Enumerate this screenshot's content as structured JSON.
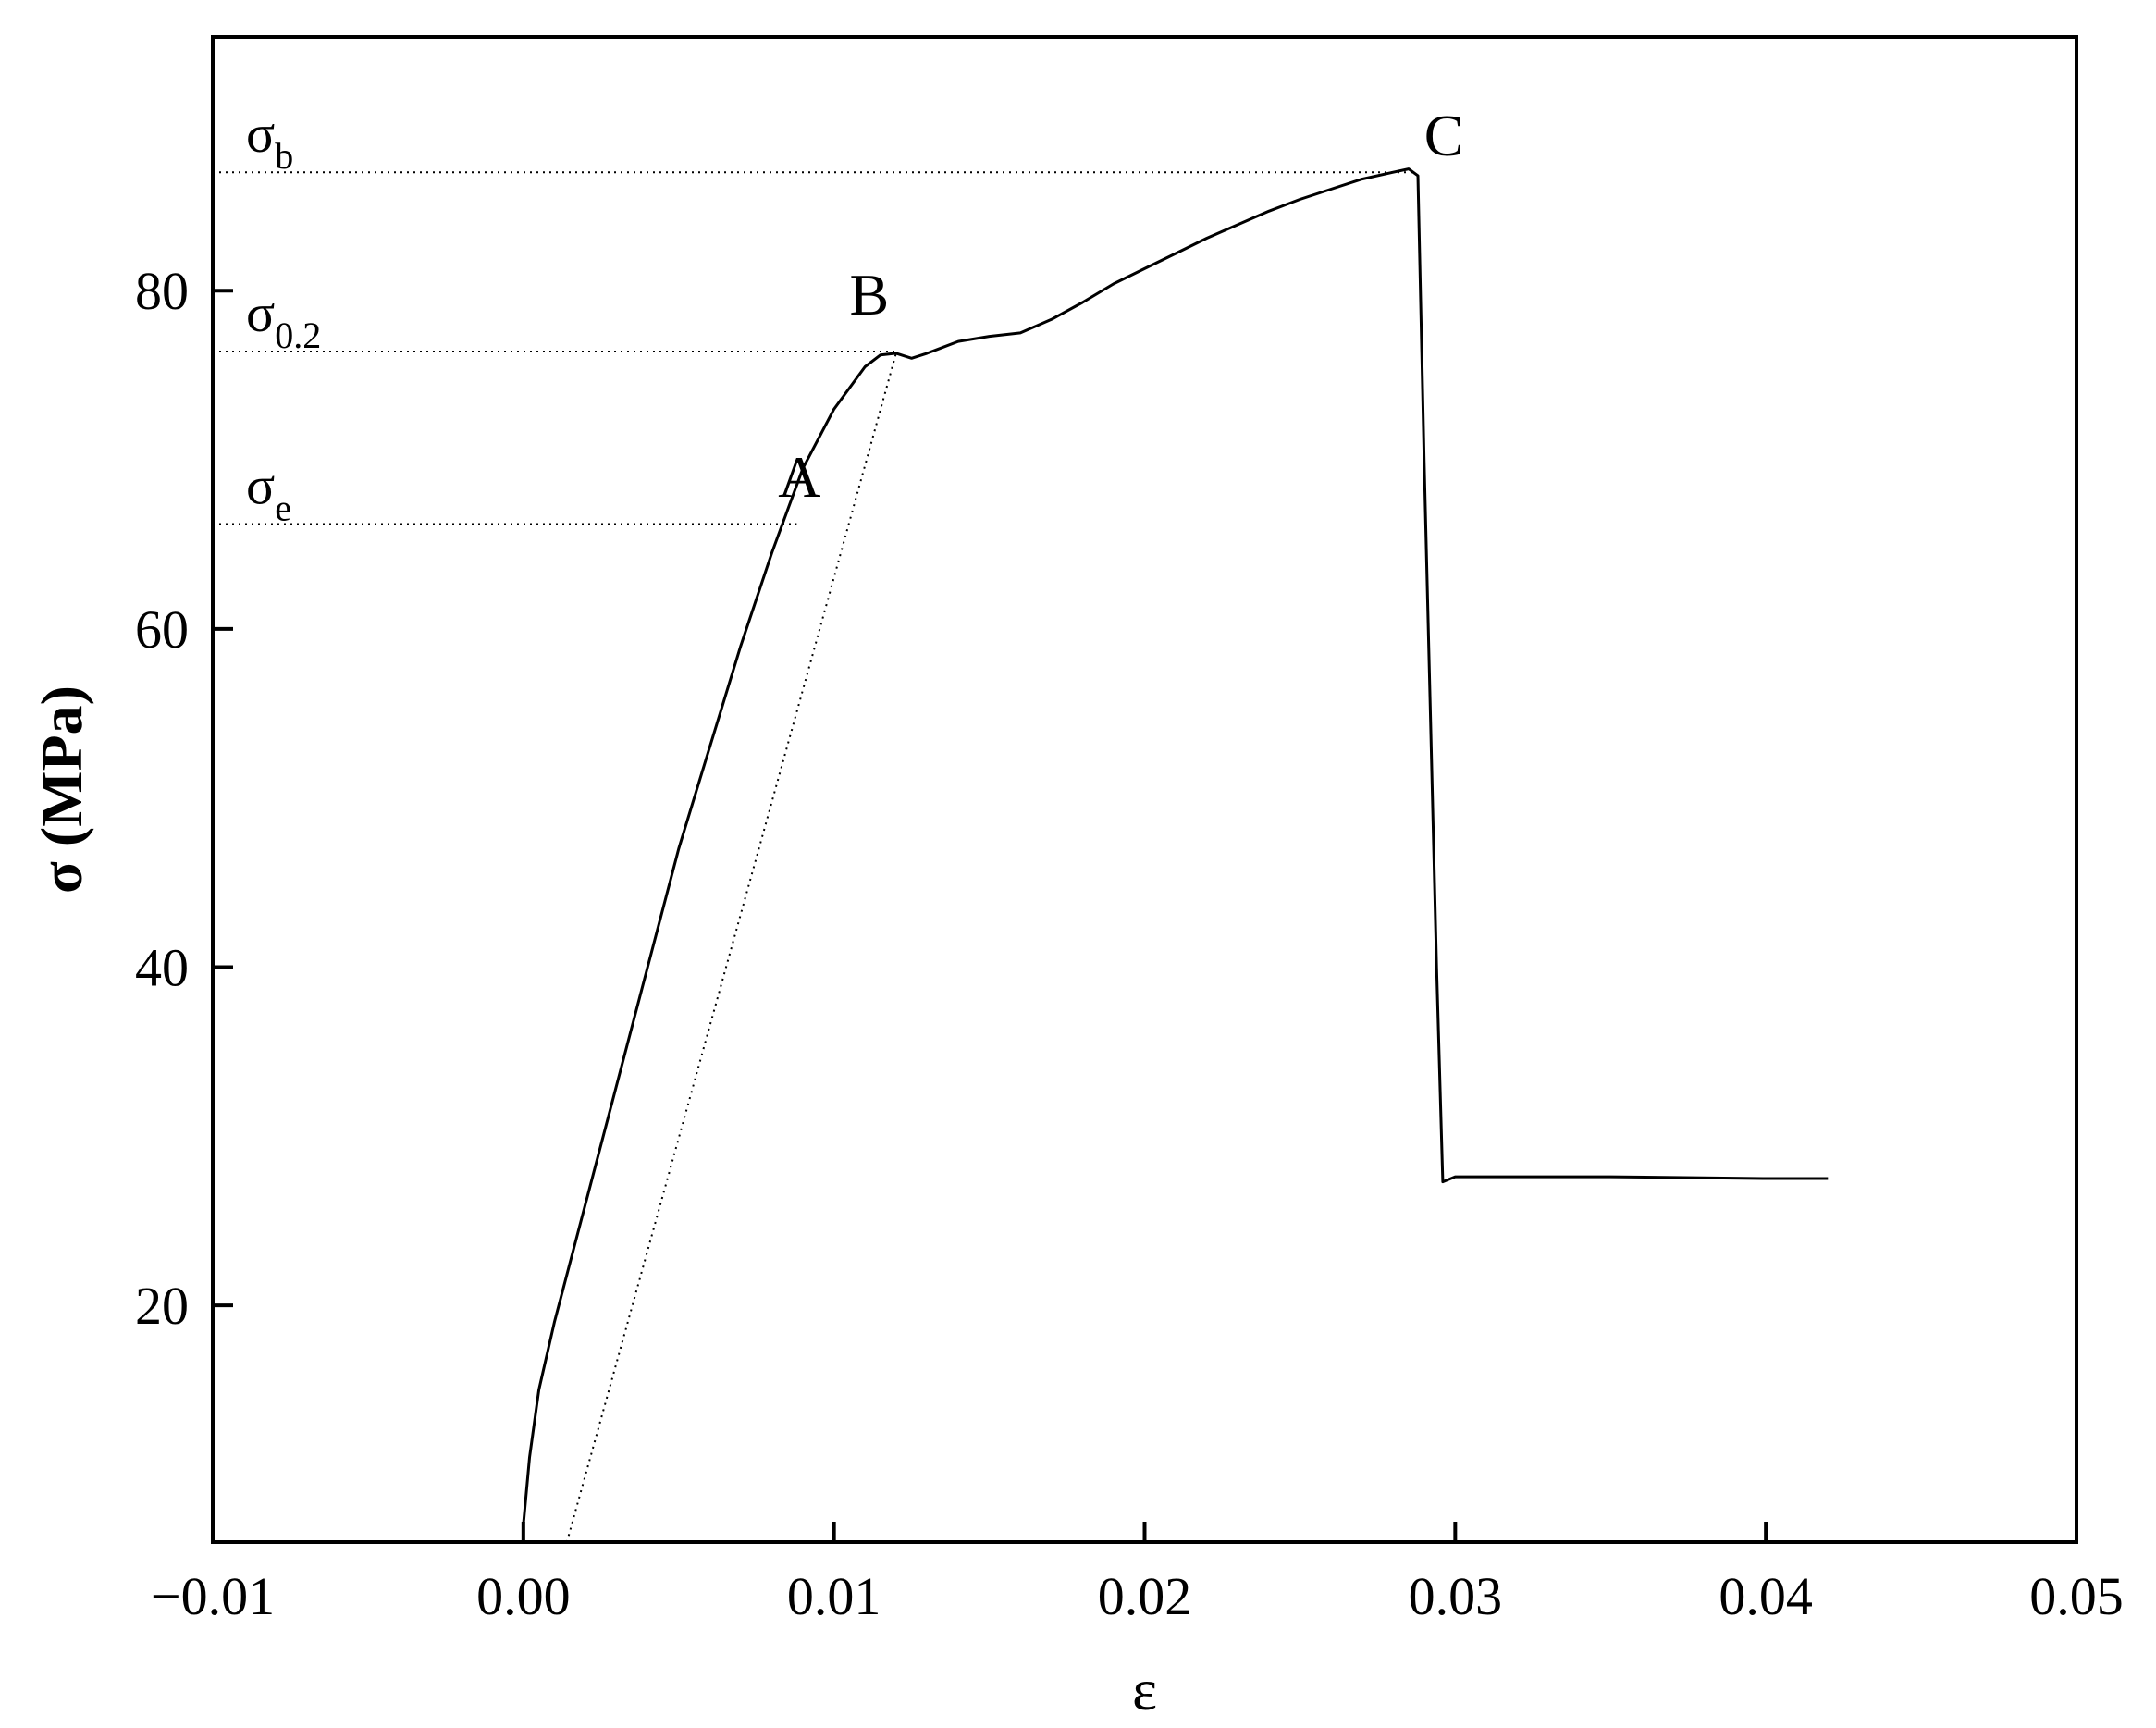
{
  "chart_data": {
    "type": "line",
    "xlabel": "ε",
    "ylabel": "σ (MPa)",
    "xlim": [
      -0.01,
      0.05
    ],
    "ylim": [
      6,
      95
    ],
    "x_ticks": [
      -0.01,
      0.0,
      0.01,
      0.02,
      0.03,
      0.04,
      0.05
    ],
    "x_tick_labels": [
      "−0.01",
      "0.00",
      "0.01",
      "0.02",
      "0.03",
      "0.04",
      "0.05"
    ],
    "y_ticks": [
      20,
      40,
      60,
      80
    ],
    "y_tick_labels": [
      "20",
      "40",
      "60",
      "80"
    ],
    "grid": false,
    "legend": "none",
    "series": [
      {
        "style": "solid",
        "x": [
          0.0,
          0.0002,
          0.0005,
          0.001,
          0.002,
          0.003,
          0.004,
          0.005,
          0.006,
          0.007,
          0.008,
          0.0085,
          0.009,
          0.01,
          0.011,
          0.0115,
          0.012,
          0.0125,
          0.013,
          0.014,
          0.015,
          0.016,
          0.017,
          0.018,
          0.019,
          0.02,
          0.021,
          0.022,
          0.023,
          0.024,
          0.025,
          0.026,
          0.027,
          0.028,
          0.0285,
          0.0288,
          0.029,
          0.0292,
          0.0294,
          0.0296,
          0.03,
          0.035,
          0.04,
          0.042
        ],
        "y": [
          7,
          11,
          15,
          19,
          26,
          33,
          40,
          47,
          53,
          59,
          64.5,
          67,
          69.5,
          73,
          75.5,
          76.2,
          76.3,
          76.0,
          76.3,
          77.0,
          77.3,
          77.5,
          78.3,
          79.3,
          80.4,
          81.3,
          82.2,
          83.1,
          83.9,
          84.7,
          85.4,
          86.0,
          86.6,
          87.0,
          87.2,
          86.8,
          70,
          55,
          40,
          27.3,
          27.6,
          27.6,
          27.5,
          27.5
        ]
      },
      {
        "style": "dotted",
        "x": [
          0.0014,
          0.012
        ],
        "y": [
          6,
          76.3
        ]
      }
    ],
    "reference_lines": [
      {
        "label": "σ",
        "sub": "b",
        "y": 87.0,
        "x_end": 0.0287
      },
      {
        "label": "σ",
        "sub": "0.2",
        "y": 76.4,
        "x_end": 0.012
      },
      {
        "label": "σ",
        "sub": "e",
        "y": 66.2,
        "x_end": 0.0088
      }
    ],
    "annotations": [
      {
        "text": "A",
        "x": 0.0082,
        "y": 67.8
      },
      {
        "text": "B",
        "x": 0.0105,
        "y": 78.6
      },
      {
        "text": "C",
        "x": 0.029,
        "y": 88.0
      }
    ]
  }
}
